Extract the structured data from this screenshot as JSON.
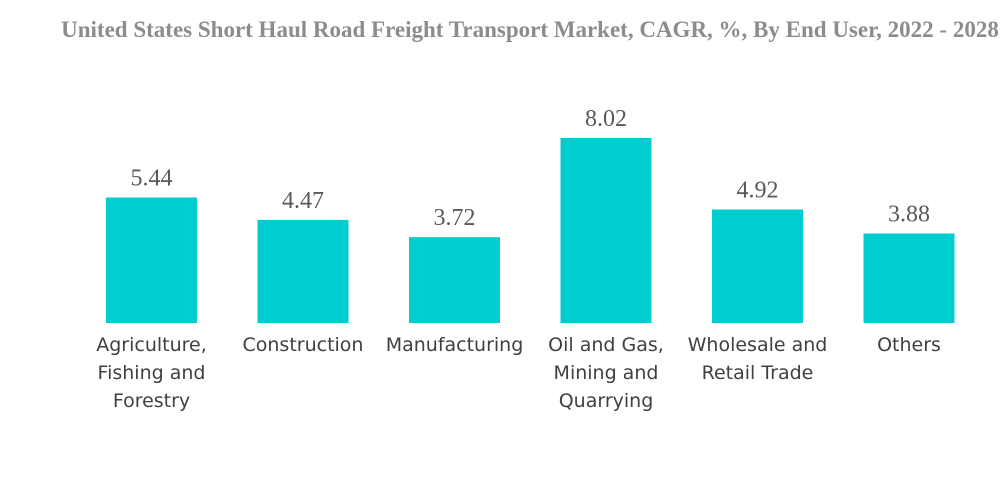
{
  "chart_data": {
    "type": "bar",
    "title": "United States Short Haul Road Freight Transport Market, CAGR, %, By End User, 2022 - 2028",
    "categories": [
      [
        "Agriculture,",
        "Fishing and",
        "Forestry"
      ],
      [
        "Construction"
      ],
      [
        "Manufacturing"
      ],
      [
        "Oil and Gas,",
        "Mining and",
        "Quarrying"
      ],
      [
        "Wholesale and",
        "Retail Trade"
      ],
      [
        "Others"
      ]
    ],
    "values": [
      5.44,
      4.47,
      3.72,
      8.02,
      4.92,
      3.88
    ],
    "value_labels": [
      "5.44",
      "4.47",
      "3.72",
      "8.02",
      "4.92",
      "3.88"
    ],
    "bar_color": "#00cdcd",
    "ylim": [
      0,
      8.02
    ],
    "grid": false,
    "legend": "none"
  }
}
